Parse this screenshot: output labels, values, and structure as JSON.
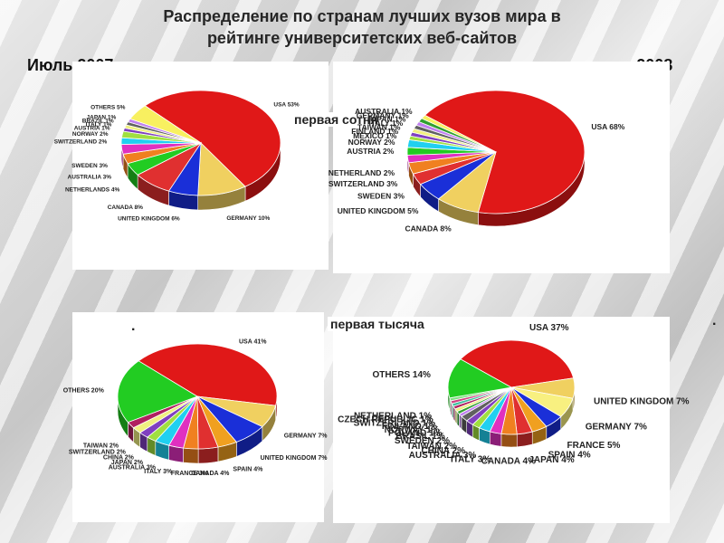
{
  "title_line1": "Распределение по странам лучших вузов мира в",
  "title_line2": "рейтинге университетских веб-сайтов",
  "label_left_date": "Июль 2007",
  "label_right_date": "январь 2008",
  "label_top_hundred": "первая сотня",
  "label_top_thousand": "первая тысяча",
  "dot_mark": ".",
  "chart_data": [
    {
      "type": "pie",
      "slices": [
        {
          "label": "USA",
          "value": 53,
          "value_text": "53%",
          "color": "#e01818"
        },
        {
          "label": "GERMANY",
          "value": 10,
          "value_text": "10%",
          "color": "#f0d060"
        },
        {
          "label": "UNITED KINGDOM",
          "value": 6,
          "value_text": "6%",
          "color": "#1a2fd8"
        },
        {
          "label": "CANADA",
          "value": 8,
          "value_text": "8%",
          "color": "#e03030"
        },
        {
          "label": "NETHERLANDS",
          "value": 4,
          "value_text": "4%",
          "color": "#22cc22"
        },
        {
          "label": "AUSTRALIA",
          "value": 3,
          "value_text": "3%",
          "color": "#f08020"
        },
        {
          "label": "SWEDEN",
          "value": 3,
          "value_text": "3%",
          "color": "#e030c0"
        },
        {
          "label": "SWITZERLAND",
          "value": 2,
          "value_text": "2%",
          "color": "#20d0f0"
        },
        {
          "label": "NORWAY",
          "value": 2,
          "value_text": "2%",
          "color": "#a0e040"
        },
        {
          "label": "AUSTRIA",
          "value": 1,
          "value_text": "1%",
          "color": "#8040c0"
        },
        {
          "label": "ITALY",
          "value": 1,
          "value_text": "1%",
          "color": "#f0f080"
        },
        {
          "label": "BRAZIL",
          "value": 1,
          "value_text": "1%",
          "color": "#606060"
        },
        {
          "label": "JAPAN",
          "value": 1,
          "value_text": "1%",
          "color": "#c080f0"
        },
        {
          "label": "OTHERS",
          "value": 5,
          "value_text": "5%",
          "color": "#f8f060"
        }
      ]
    },
    {
      "type": "pie",
      "slices": [
        {
          "label": "USA",
          "value": 68,
          "value_text": "68%",
          "color": "#e01818"
        },
        {
          "label": "CANADA",
          "value": 8,
          "value_text": "8%",
          "color": "#f0d060"
        },
        {
          "label": "UNITED KINGDOM",
          "value": 5,
          "value_text": "5%",
          "color": "#1a2fd8"
        },
        {
          "label": "SWEDEN",
          "value": 3,
          "value_text": "3%",
          "color": "#e03030"
        },
        {
          "label": "SWITZERLAND",
          "value": 3,
          "value_text": "3%",
          "color": "#f08020"
        },
        {
          "label": "NETHERLAND",
          "value": 2,
          "value_text": "2%",
          "color": "#e030c0"
        },
        {
          "label": "AUSTRIA",
          "value": 2,
          "value_text": "2%",
          "color": "#22cc22"
        },
        {
          "label": "NORWAY",
          "value": 2,
          "value_text": "2%",
          "color": "#20d0f0"
        },
        {
          "label": "MEXICO",
          "value": 1,
          "value_text": "1%",
          "color": "#a0e040"
        },
        {
          "label": "FINLAND",
          "value": 1,
          "value_text": "1%",
          "color": "#8040c0"
        },
        {
          "label": "TAIWAN",
          "value": 1,
          "value_text": "1%",
          "color": "#f0f080"
        },
        {
          "label": "ITALY",
          "value": 1,
          "value_text": "1%",
          "color": "#606060"
        },
        {
          "label": "JAPAN",
          "value": 1,
          "value_text": "1%",
          "color": "#c080f0"
        },
        {
          "label": "GERMANY",
          "value": 1,
          "value_text": "1%",
          "color": "#30a030"
        },
        {
          "label": "AUSTRALIA",
          "value": 1,
          "value_text": "1%",
          "color": "#f8f060"
        }
      ]
    },
    {
      "type": "pie",
      "slices": [
        {
          "label": "USA",
          "value": 41,
          "value_text": "41%",
          "color": "#e01818"
        },
        {
          "label": "GERMANY",
          "value": 7,
          "value_text": "7%",
          "color": "#f0d060"
        },
        {
          "label": "UNITED KINGDOM",
          "value": 7,
          "value_text": "7%",
          "color": "#1a2fd8"
        },
        {
          "label": "SPAIN",
          "value": 4,
          "value_text": "4%",
          "color": "#f0a020"
        },
        {
          "label": "CANADA",
          "value": 4,
          "value_text": "4%",
          "color": "#e03030"
        },
        {
          "label": "FRANCE",
          "value": 3,
          "value_text": "3%",
          "color": "#f08020"
        },
        {
          "label": "ITALY",
          "value": 3,
          "value_text": "3%",
          "color": "#e030c0"
        },
        {
          "label": "AUSTRALIA",
          "value": 3,
          "value_text": "3%",
          "color": "#20d0f0"
        },
        {
          "label": "JAPAN",
          "value": 2,
          "value_text": "2%",
          "color": "#a0e040"
        },
        {
          "label": "CHINA",
          "value": 2,
          "value_text": "2%",
          "color": "#8040c0"
        },
        {
          "label": "SWITZERLAND",
          "value": 2,
          "value_text": "2%",
          "color": "#f0f080"
        },
        {
          "label": "TAIWAN",
          "value": 2,
          "value_text": "2%",
          "color": "#b02060"
        },
        {
          "label": "OTHERS",
          "value": 20,
          "value_text": "20%",
          "color": "#22cc22"
        }
      ]
    },
    {
      "type": "pie",
      "slices": [
        {
          "label": "USA",
          "value": 37,
          "value_text": "37%",
          "color": "#e01818"
        },
        {
          "label": "UNITED KINGDOM",
          "value": 7,
          "value_text": "7%",
          "color": "#f0d060"
        },
        {
          "label": "GERMANY",
          "value": 7,
          "value_text": "7%",
          "color": "#f8f080"
        },
        {
          "label": "FRANCE",
          "value": 5,
          "value_text": "5%",
          "color": "#1a2fd8"
        },
        {
          "label": "SPAIN",
          "value": 4,
          "value_text": "4%",
          "color": "#f0a020"
        },
        {
          "label": "JAPAN",
          "value": 4,
          "value_text": "4%",
          "color": "#e03030"
        },
        {
          "label": "CANADA",
          "value": 4,
          "value_text": "4%",
          "color": "#f08020"
        },
        {
          "label": "ITALY",
          "value": 3,
          "value_text": "3%",
          "color": "#e030c0"
        },
        {
          "label": "AUSTRALIA",
          "value": 3,
          "value_text": "3%",
          "color": "#20d0f0"
        },
        {
          "label": "CHINA",
          "value": 2,
          "value_text": "2%",
          "color": "#a0e040"
        },
        {
          "label": "TAIWAN",
          "value": 2,
          "value_text": "2%",
          "color": "#8040c0"
        },
        {
          "label": "SWEDEN",
          "value": 2,
          "value_text": "2%",
          "color": "#606060"
        },
        {
          "label": "BRASIL",
          "value": 1,
          "value_text": "1%",
          "color": "#c080f0"
        },
        {
          "label": "POLAND",
          "value": 1,
          "value_text": "1%",
          "color": "#30a030"
        },
        {
          "label": "NORWAY",
          "value": 1,
          "value_text": "1%",
          "color": "#f0f080"
        },
        {
          "label": "FINLAND",
          "value": 1,
          "value_text": "1%",
          "color": "#b02060"
        },
        {
          "label": "SWITZERLAND",
          "value": 1,
          "value_text": "1%",
          "color": "#40c0a0"
        },
        {
          "label": "CZECH REPUBLIC",
          "value": 1,
          "value_text": "1%",
          "color": "#d04080"
        },
        {
          "label": "NETHERLAND",
          "value": 1,
          "value_text": "1%",
          "color": "#80e080"
        },
        {
          "label": "OTHERS",
          "value": 14,
          "value_text": "14%",
          "color": "#22cc22"
        }
      ]
    }
  ]
}
